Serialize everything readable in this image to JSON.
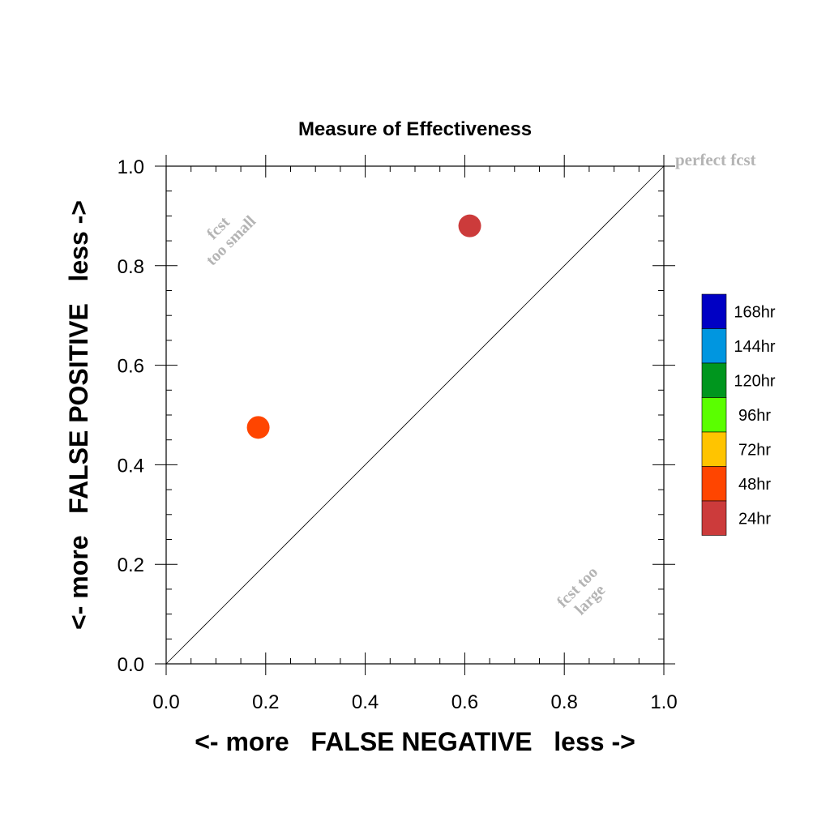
{
  "chart_data": {
    "type": "scatter",
    "title": "Measure of Effectiveness",
    "xlabel": "<- more   FALSE NEGATIVE   less ->",
    "ylabel": "<- more   FALSE POSITIVE   less ->",
    "xlim": [
      0.0,
      1.0
    ],
    "ylim": [
      0.0,
      1.0
    ],
    "x_ticks": [
      "0.0",
      "0.2",
      "0.4",
      "0.6",
      "0.8",
      "1.0"
    ],
    "y_ticks": [
      "0.0",
      "0.2",
      "0.4",
      "0.6",
      "0.8",
      "1.0"
    ],
    "grid": false,
    "reference_line": {
      "from": [
        0.0,
        0.0
      ],
      "to": [
        1.0,
        1.0
      ]
    },
    "annotations": {
      "perfect": "perfect fcst",
      "too_small_1": "fcst",
      "too_small_2": "too small",
      "too_large_1": "fcst too",
      "too_large_2": "large"
    },
    "points": [
      {
        "label": "24hr",
        "x": 0.61,
        "y": 0.88,
        "color": "#cc3b3b"
      },
      {
        "label": "48hr",
        "x": 0.185,
        "y": 0.475,
        "color": "#ff4500"
      }
    ],
    "legend": {
      "placement": "right",
      "entries": [
        {
          "label": "168hr",
          "color": "#0000c4"
        },
        {
          "label": "144hr",
          "color": "#0096e0"
        },
        {
          "label": "120hr",
          "color": "#00961e"
        },
        {
          "label": "96hr",
          "color": "#5aff00"
        },
        {
          "label": "72hr",
          "color": "#ffc400"
        },
        {
          "label": "48hr",
          "color": "#ff4500"
        },
        {
          "label": "24hr",
          "color": "#cc3b3b"
        }
      ]
    },
    "annotation_color": "#b4b4b4"
  }
}
